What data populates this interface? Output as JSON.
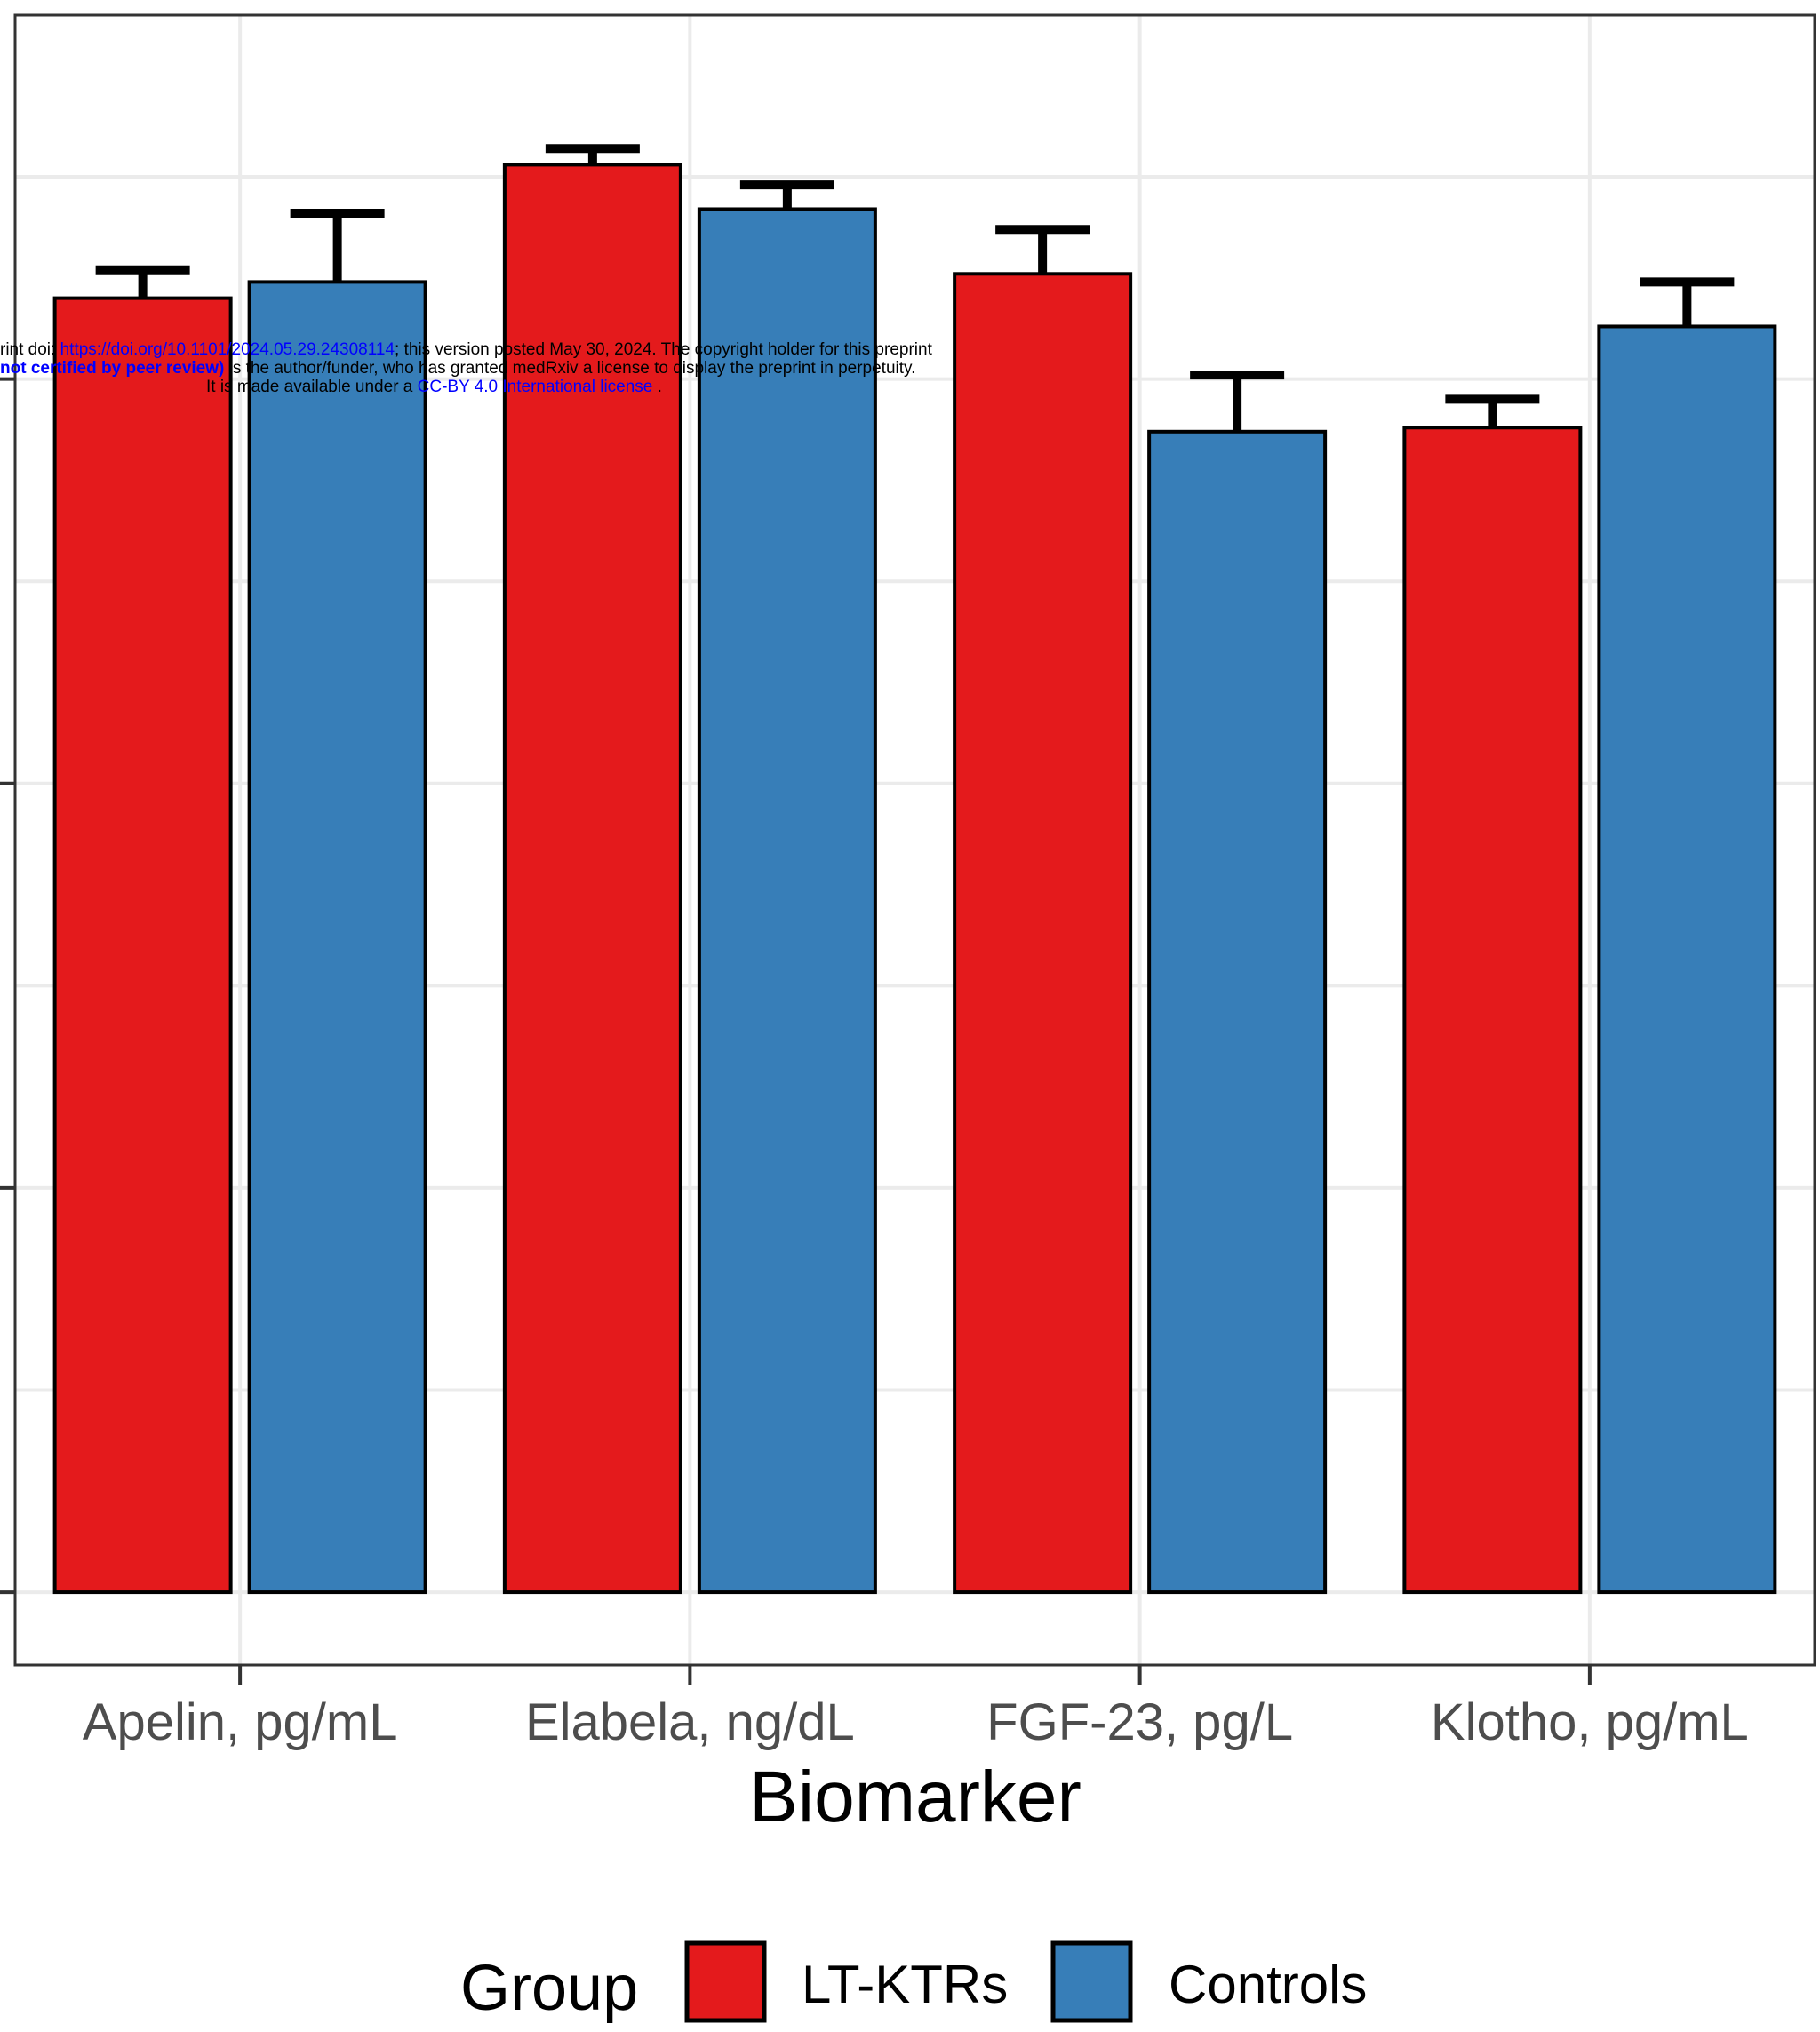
{
  "chart_data": {
    "type": "bar",
    "categories": [
      "Apelin, pg/mL",
      "Elabela, ng/dL",
      "FGF-23, pg/L",
      "Klotho, pg/mL"
    ],
    "series": [
      {
        "name": "LT-KTRs",
        "color": "#e41a1c",
        "values": [
          3.2,
          3.53,
          3.26,
          2.88
        ],
        "error": [
          0.07,
          0.04,
          0.11,
          0.07
        ]
      },
      {
        "name": "Controls",
        "color": "#377eb8",
        "values": [
          3.24,
          3.42,
          2.87,
          3.13
        ],
        "error": [
          0.17,
          0.06,
          0.14,
          0.11
        ]
      }
    ],
    "xlabel": "Biomarker",
    "ylabel": "",
    "ylim": [
      -0.18,
      3.9
    ],
    "y_gridlines_major": [
      0,
      1,
      2,
      3
    ],
    "grid": true,
    "legend": {
      "title": "Group",
      "placement": "bottom",
      "entries": [
        "LT-KTRs",
        "Controls"
      ]
    }
  },
  "notice": {
    "line1_prefix": "rint doi: ",
    "line1_link": "https://doi.org/10.1101/2024.05.29.24308114",
    "line1_suffix": "; this version posted May 30, 2024. The copyright holder for this preprint",
    "line2_bold": "not certified by peer review)",
    "line2_suffix": " is the author/funder, who has granted medRxiv a license to display the preprint in perpetuity.",
    "line3_prefix": "It is made available under a ",
    "line3_link": "CC-BY 4.0 International license",
    "line3_suffix": " ."
  }
}
